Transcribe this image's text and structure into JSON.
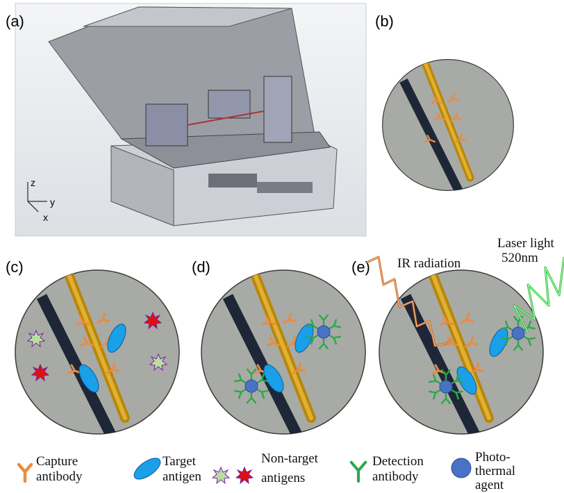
{
  "panels": {
    "a": "(a)",
    "b": "(b)",
    "c": "(c)",
    "d": "(d)",
    "e": "(e)"
  },
  "axes": {
    "z": "z",
    "y": "y",
    "x": "x"
  },
  "annotations": {
    "ir": "IR radiation",
    "laser": [
      "Laser light",
      "520nm"
    ]
  },
  "legend": [
    {
      "label": [
        "Capture",
        "antibody"
      ]
    },
    {
      "label": [
        "Target",
        "antigen"
      ]
    },
    {
      "label": [
        "Non-target",
        "antigens"
      ]
    },
    {
      "label": [
        "Detection",
        "antibody"
      ]
    },
    {
      "label": [
        "Photo-",
        "thermal",
        "agent"
      ]
    }
  ]
}
